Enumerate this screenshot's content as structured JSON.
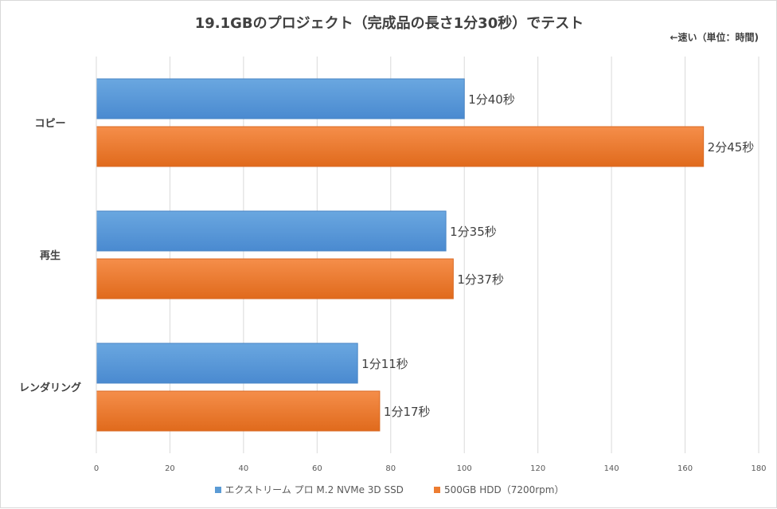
{
  "chart_data": {
    "type": "bar",
    "orientation": "horizontal",
    "title": "19.1GBのプロジェクト（完成品の長さ1分30秒）でテスト",
    "note": "←速い（単位：時間)",
    "categories": [
      "コピー",
      "再生",
      "レンダリング"
    ],
    "series": [
      {
        "name": "エクストリーム プロ M.2 NVMe 3D SSD",
        "color": "#5b9bd5",
        "values": [
          100,
          95,
          71
        ],
        "labels": [
          "1分40秒",
          "1分35秒",
          "1分11秒"
        ]
      },
      {
        "name": "500GB HDD（7200rpm）",
        "color": "#ed7d31",
        "values": [
          165,
          97,
          77
        ],
        "labels": [
          "2分45秒",
          "1分37秒",
          "1分17秒"
        ]
      }
    ],
    "xlim": [
      0,
      180
    ],
    "xticks": [
      "0",
      "20",
      "40",
      "60",
      "80",
      "100",
      "120",
      "140",
      "160",
      "180"
    ],
    "grid": true,
    "legend": "bottom"
  }
}
